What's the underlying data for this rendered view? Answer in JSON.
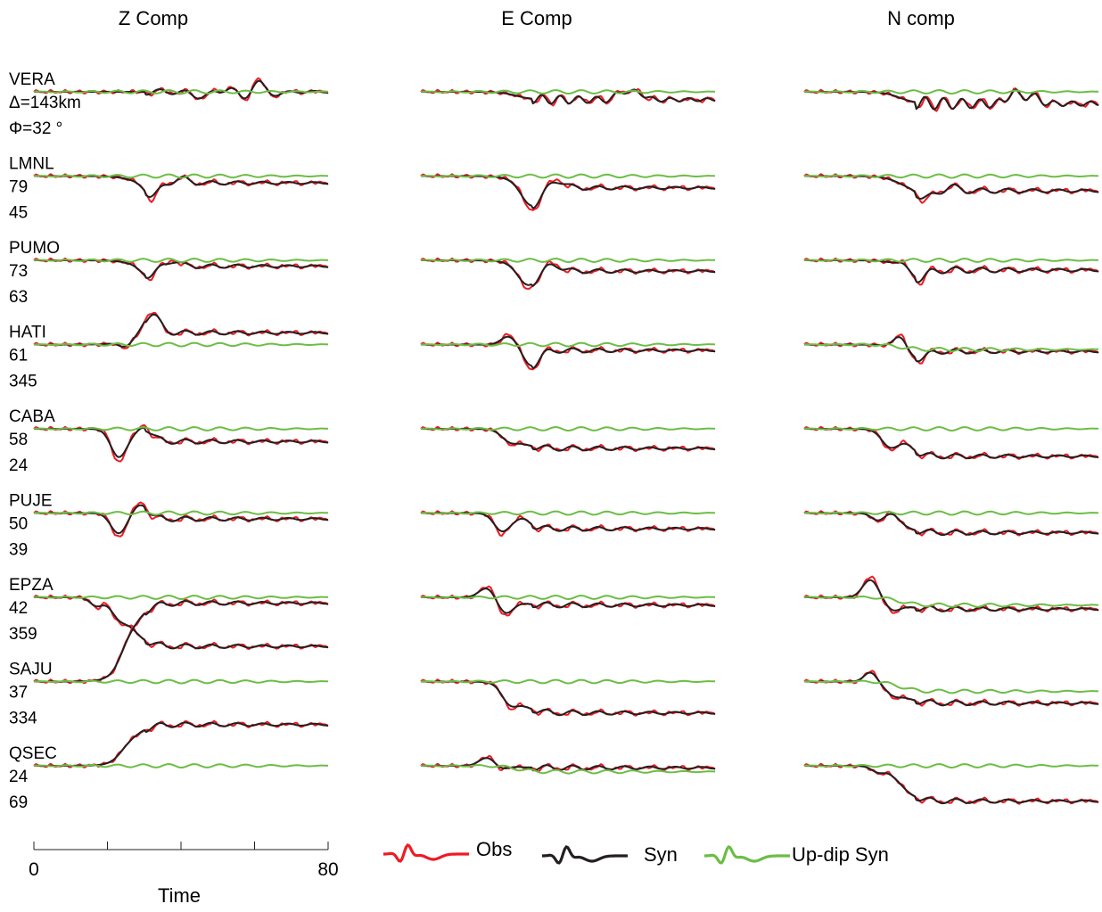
{
  "chart_data": {
    "type": "line",
    "title": "",
    "columns": [
      "Z  Comp",
      "E  Comp",
      "N comp"
    ],
    "xlabel": "Time",
    "xlim": [
      0,
      80
    ],
    "x_ticks": [
      "0",
      "80"
    ],
    "series_legend": [
      {
        "name": "Obs",
        "color": "#ed1c24"
      },
      {
        "name": "Syn",
        "color": "#231f20"
      },
      {
        "name": "Up-dip Syn",
        "color": "#6cbd45"
      }
    ],
    "stations": [
      {
        "name": "VERA",
        "distance": "Δ=143km",
        "azimuth": "Φ=32 °",
        "Z": {
          "step": 0,
          "updip_step": 0,
          "pulses": [
            [
              45,
              -0.6,
              2.5
            ],
            [
              54,
              0.6,
              2
            ],
            [
              57,
              -1.0,
              2
            ],
            [
              61,
              1.4,
              2
            ],
            [
              65,
              -0.4,
              2.5
            ]
          ],
          "ringing": [
            0.3,
            7,
            0.35
          ]
        },
        "E": {
          "step": -0.8,
          "updip_step": 0,
          "pulses": [
            [
              55,
              1.0,
              2
            ],
            [
              59,
              0.9,
              2
            ]
          ],
          "ringing": [
            0.5,
            5,
            0.45
          ]
        },
        "N": {
          "step": -1.2,
          "updip_step": 0,
          "pulses": [
            [
              57,
              1.4,
              2
            ],
            [
              62,
              1.0,
              2
            ]
          ],
          "ringing": [
            0.7,
            5,
            0.4
          ]
        }
      },
      {
        "name": "LMNL",
        "distance": "79",
        "azimuth": "45",
        "Z": {
          "step": -0.7,
          "updip_step": 0,
          "pulses": [
            [
              32,
              -1.6,
              2.5
            ],
            [
              40,
              0.6,
              2
            ]
          ],
          "ringing": [
            0.3,
            7,
            0.5
          ]
        },
        "E": {
          "step": -1.2,
          "updip_step": 0,
          "pulses": [
            [
              30,
              -2.4,
              3
            ],
            [
              37,
              0.9,
              2.5
            ]
          ],
          "ringing": [
            0.3,
            7,
            0.5
          ]
        },
        "N": {
          "step": -1.5,
          "updip_step": 0,
          "pulses": [
            [
              33,
              -1.0,
              2.5
            ],
            [
              40,
              0.5,
              2
            ]
          ],
          "ringing": [
            0.4,
            7,
            0.5
          ]
        }
      },
      {
        "name": "PUMO",
        "distance": "73",
        "azimuth": "63",
        "Z": {
          "step": -0.6,
          "updip_step": 0,
          "pulses": [
            [
              31,
              -1.2,
              2.5
            ],
            [
              38,
              0.7,
              2
            ]
          ],
          "ringing": [
            0.3,
            7,
            0.5
          ]
        },
        "E": {
          "step": -1.1,
          "updip_step": 0,
          "pulses": [
            [
              29,
              -2.0,
              3
            ],
            [
              36,
              0.8,
              2.5
            ]
          ],
          "ringing": [
            0.3,
            7,
            0.5
          ]
        },
        "N": {
          "step": -1.0,
          "updip_step": 0,
          "pulses": [
            [
              27,
              0.5,
              2
            ],
            [
              31,
              -1.2,
              2.5
            ]
          ],
          "ringing": [
            0.4,
            7,
            0.5
          ]
        }
      },
      {
        "name": "HATI",
        "distance": "61",
        "azimuth": "345",
        "Z": {
          "step": 1.2,
          "updip_step": 0,
          "pulses": [
            [
              25,
              -0.8,
              2
            ],
            [
              32,
              2.4,
              2.5
            ]
          ],
          "ringing": [
            0.3,
            7,
            0.5
          ]
        },
        "E": {
          "step": -0.6,
          "updip_step": 0,
          "pulses": [
            [
              24,
              1.2,
              2.5
            ],
            [
              30,
              -2.0,
              2.5
            ]
          ],
          "ringing": [
            0.3,
            7,
            0.5
          ]
        },
        "N": {
          "step": -0.7,
          "updip_step": -0.5,
          "pulses": [
            [
              26,
              1.4,
              2
            ],
            [
              31,
              -1.0,
              2.5
            ]
          ],
          "ringing": [
            0.3,
            7,
            0.5
          ]
        }
      },
      {
        "name": "CABA",
        "distance": "58",
        "azimuth": "24",
        "Z": {
          "step": -1.3,
          "updip_step": 0,
          "pulses": [
            [
              23,
              -3.2,
              2.5
            ],
            [
              30,
              1.5,
              2.5
            ]
          ],
          "ringing": [
            0.3,
            7,
            0.5
          ]
        },
        "E": {
          "step": -2.0,
          "updip_step": 0,
          "pulses": [
            [
              24,
              -1.0,
              2.5
            ]
          ],
          "ringing": [
            0.3,
            7,
            0.5
          ]
        },
        "N": {
          "step": -2.8,
          "updip_step": 0,
          "pulses": [
            [
              23,
              -1.6,
              2.5
            ],
            [
              28,
              0.6,
              2
            ]
          ],
          "ringing": [
            0.3,
            7,
            0.5
          ]
        }
      },
      {
        "name": "PUJE",
        "distance": "50",
        "azimuth": "39",
        "Z": {
          "step": -0.6,
          "updip_step": 0,
          "pulses": [
            [
              23,
              -2.4,
              2.5
            ],
            [
              29,
              1.6,
              2.5
            ]
          ],
          "ringing": [
            0.3,
            7,
            0.5
          ]
        },
        "E": {
          "step": -1.6,
          "updip_step": 0,
          "pulses": [
            [
              22,
              -2.0,
              2.5
            ],
            [
              28,
              0.7,
              2
            ]
          ],
          "ringing": [
            0.3,
            7,
            0.5
          ]
        },
        "N": {
          "step": -2.0,
          "updip_step": 0,
          "pulses": [
            [
              20,
              -0.8,
              2
            ],
            [
              24,
              0.6,
              2
            ]
          ],
          "ringing": [
            0.3,
            7,
            0.5
          ]
        }
      },
      {
        "name": "EPZA",
        "distance": "42",
        "azimuth": "359",
        "Z": {
          "step": -5.0,
          "updip_step": 0,
          "pulses": [
            [
              17,
              -1.0,
              2
            ],
            [
              23,
              -1.6,
              2.5
            ]
          ],
          "ringing": [
            0.3,
            7,
            0.5
          ]
        },
        "E": {
          "step": -0.8,
          "updip_step": 0,
          "pulses": [
            [
              18,
              1.2,
              2.5
            ],
            [
              23,
              -1.8,
              2.5
            ]
          ],
          "ringing": [
            0.3,
            7,
            0.5
          ]
        },
        "N": {
          "step": -1.2,
          "updip_step": -0.8,
          "pulses": [
            [
              18,
              2.2,
              2.5
            ],
            [
              24,
              -1.2,
              2.5
            ]
          ],
          "ringing": [
            0.3,
            7,
            0.5
          ]
        }
      },
      {
        "name": "SAJU",
        "distance": "37",
        "azimuth": "334",
        "Z": {
          "step": 8.0,
          "updip_step": 0,
          "pulses": [
            [
              25,
              1.0,
              2.5
            ]
          ],
          "ringing": [
            0.3,
            7,
            0.5
          ]
        },
        "E": {
          "step": -3.2,
          "updip_step": 0,
          "pulses": [
            [
              24,
              -1.8,
              2.5
            ]
          ],
          "ringing": [
            0.3,
            7,
            0.5
          ]
        },
        "N": {
          "step": -2.2,
          "updip_step": -1.0,
          "pulses": [
            [
              18,
              1.2,
              2
            ],
            [
              24,
              -1.0,
              2.5
            ]
          ],
          "ringing": [
            0.3,
            7,
            0.5
          ]
        }
      },
      {
        "name": "QSEC",
        "distance": "24",
        "azimuth": "69",
        "Z": {
          "step": 4.2,
          "updip_step": 0,
          "pulses": [
            [
              25,
              0.5,
              2.5
            ]
          ],
          "ringing": [
            0.3,
            7,
            0.5
          ]
        },
        "E": {
          "step": -0.2,
          "updip_step": -0.6,
          "pulses": [
            [
              18,
              1.0,
              2.5
            ],
            [
              22,
              -0.4,
              2
            ]
          ],
          "ringing": [
            0.3,
            7,
            0.5
          ]
        },
        "N": {
          "step": -3.6,
          "updip_step": 0,
          "pulses": [
            [
              20,
              -0.6,
              2
            ]
          ],
          "ringing": [
            0.3,
            7,
            0.5
          ]
        }
      }
    ]
  }
}
